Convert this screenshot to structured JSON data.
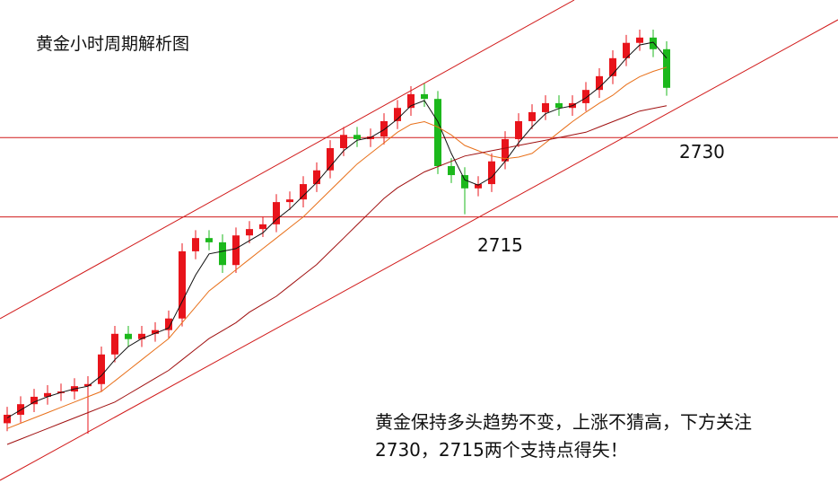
{
  "chart_data": {
    "type": "candlestick",
    "title": "黄金小时周期解析图",
    "annotation": [
      "黄金保持多头趋势不变，上涨不猜高，下方关注",
      "2730，2715两个支持点得失！"
    ],
    "ylim": [
      2663,
      2756
    ],
    "up_color": "#e8141b",
    "down_color": "#1cb81c",
    "open": [
      2676.0,
      2677.6,
      2679.6,
      2681.0,
      2681.7,
      2682.0,
      2683.0,
      2683.4,
      2689.0,
      2692.9,
      2691.9,
      2692.9,
      2693.6,
      2695.8,
      2708.5,
      2711.0,
      2710.2,
      2705.9,
      2711.5,
      2712.7,
      2713.6,
      2717.8,
      2718.3,
      2721.2,
      2723.8,
      2728.0,
      2730.5,
      2729.7,
      2730.2,
      2733.1,
      2735.6,
      2738.2,
      2737.3,
      2724.6,
      2722.9,
      2720.4,
      2721.2,
      2725.5,
      2729.7,
      2733.1,
      2734.8,
      2736.5,
      2735.6,
      2736.5,
      2739.0,
      2741.6,
      2745.0,
      2747.9,
      2748.9,
      2746.7
    ],
    "high": [
      2679.1,
      2681.1,
      2682.5,
      2683.2,
      2683.5,
      2684.5,
      2684.9,
      2690.5,
      2694.4,
      2694.4,
      2694.4,
      2695.1,
      2697.3,
      2710.0,
      2712.5,
      2712.5,
      2711.7,
      2713.0,
      2714.2,
      2715.1,
      2719.3,
      2719.8,
      2722.7,
      2725.3,
      2729.5,
      2732.0,
      2732.0,
      2731.7,
      2734.6,
      2737.1,
      2739.7,
      2740.2,
      2738.8,
      2726.1,
      2724.4,
      2722.7,
      2727.0,
      2731.2,
      2734.6,
      2736.3,
      2738.0,
      2738.0,
      2738.0,
      2740.5,
      2743.1,
      2746.5,
      2749.4,
      2750.4,
      2750.4,
      2748.2
    ],
    "low": [
      2674.5,
      2676.1,
      2678.1,
      2679.5,
      2680.2,
      2680.5,
      2674.0,
      2681.9,
      2687.5,
      2690.4,
      2690.4,
      2691.4,
      2692.1,
      2694.3,
      2707.0,
      2708.7,
      2704.4,
      2704.4,
      2710.0,
      2711.2,
      2712.1,
      2716.3,
      2716.8,
      2719.7,
      2722.3,
      2726.5,
      2728.2,
      2728.2,
      2728.7,
      2731.6,
      2734.1,
      2735.8,
      2723.1,
      2721.4,
      2715.5,
      2718.9,
      2719.7,
      2724.0,
      2728.2,
      2731.6,
      2733.3,
      2734.1,
      2734.1,
      2735.0,
      2737.5,
      2740.1,
      2743.5,
      2746.4,
      2745.2,
      2737.9
    ],
    "close": [
      2677.6,
      2679.6,
      2681.0,
      2681.7,
      2682.0,
      2683.0,
      2683.4,
      2689.0,
      2692.9,
      2691.9,
      2692.9,
      2693.6,
      2695.8,
      2708.5,
      2711.0,
      2710.2,
      2705.9,
      2711.5,
      2712.7,
      2713.6,
      2717.8,
      2718.3,
      2721.2,
      2723.8,
      2728.0,
      2730.5,
      2729.7,
      2730.2,
      2733.1,
      2735.6,
      2738.2,
      2737.3,
      2724.6,
      2722.9,
      2720.4,
      2721.2,
      2725.5,
      2729.7,
      2733.1,
      2734.8,
      2736.5,
      2735.6,
      2736.5,
      2739.0,
      2741.6,
      2745.0,
      2747.9,
      2748.9,
      2746.7,
      2739.4
    ],
    "moving_averages": [
      {
        "color": "#111111",
        "values": [
          2677,
          2678.5,
          2680,
          2681,
          2681.8,
          2682.5,
          2683,
          2685,
          2688,
          2690.5,
          2692,
          2693,
          2694,
          2699,
          2704,
          2708,
          2708.5,
          2709,
          2710.5,
          2712,
          2714.5,
          2716.5,
          2719,
          2721.5,
          2724.5,
          2727.5,
          2729.5,
          2730,
          2731.5,
          2733.5,
          2736,
          2737,
          2733,
          2727,
          2722,
          2721,
          2722.5,
          2725.5,
          2729,
          2732,
          2734.5,
          2735.5,
          2736,
          2737.5,
          2739.5,
          2742,
          2745,
          2747.5,
          2748,
          2745
        ]
      },
      {
        "color": "#e8701a",
        "values": [
          2675,
          2676,
          2677,
          2678,
          2679,
          2680,
          2681,
          2682,
          2684,
          2686,
          2688,
          2690,
          2692,
          2695,
          2698,
          2701,
          2703,
          2705,
          2707,
          2709,
          2711,
          2713,
          2715,
          2717.5,
          2720,
          2722.5,
          2725,
          2727,
          2729,
          2731,
          2732.5,
          2733,
          2732,
          2730.5,
          2728.5,
          2727.5,
          2726.5,
          2726,
          2726.3,
          2727,
          2729,
          2731,
          2733,
          2734.8,
          2736.5,
          2738,
          2740,
          2741.5,
          2742.5,
          2743.3
        ]
      },
      {
        "color": "#a01010",
        "values": [
          2672,
          2673,
          2674,
          2675,
          2676,
          2677,
          2678,
          2679,
          2680,
          2681.5,
          2683,
          2684.5,
          2686,
          2688,
          2690,
          2692,
          2693.5,
          2695,
          2697,
          2698.5,
          2700,
          2702,
          2704,
          2706,
          2708.5,
          2711,
          2713.5,
          2716,
          2718.5,
          2720.5,
          2722,
          2723.5,
          2724.5,
          2725.5,
          2726.5,
          2727,
          2727.5,
          2728,
          2728.5,
          2729,
          2729.5,
          2730,
          2730.5,
          2731,
          2732,
          2733,
          2734,
          2735,
          2735.5,
          2736
        ]
      }
    ],
    "levels": [
      2730,
      2715
    ],
    "level_color": "#d11a1a"
  }
}
